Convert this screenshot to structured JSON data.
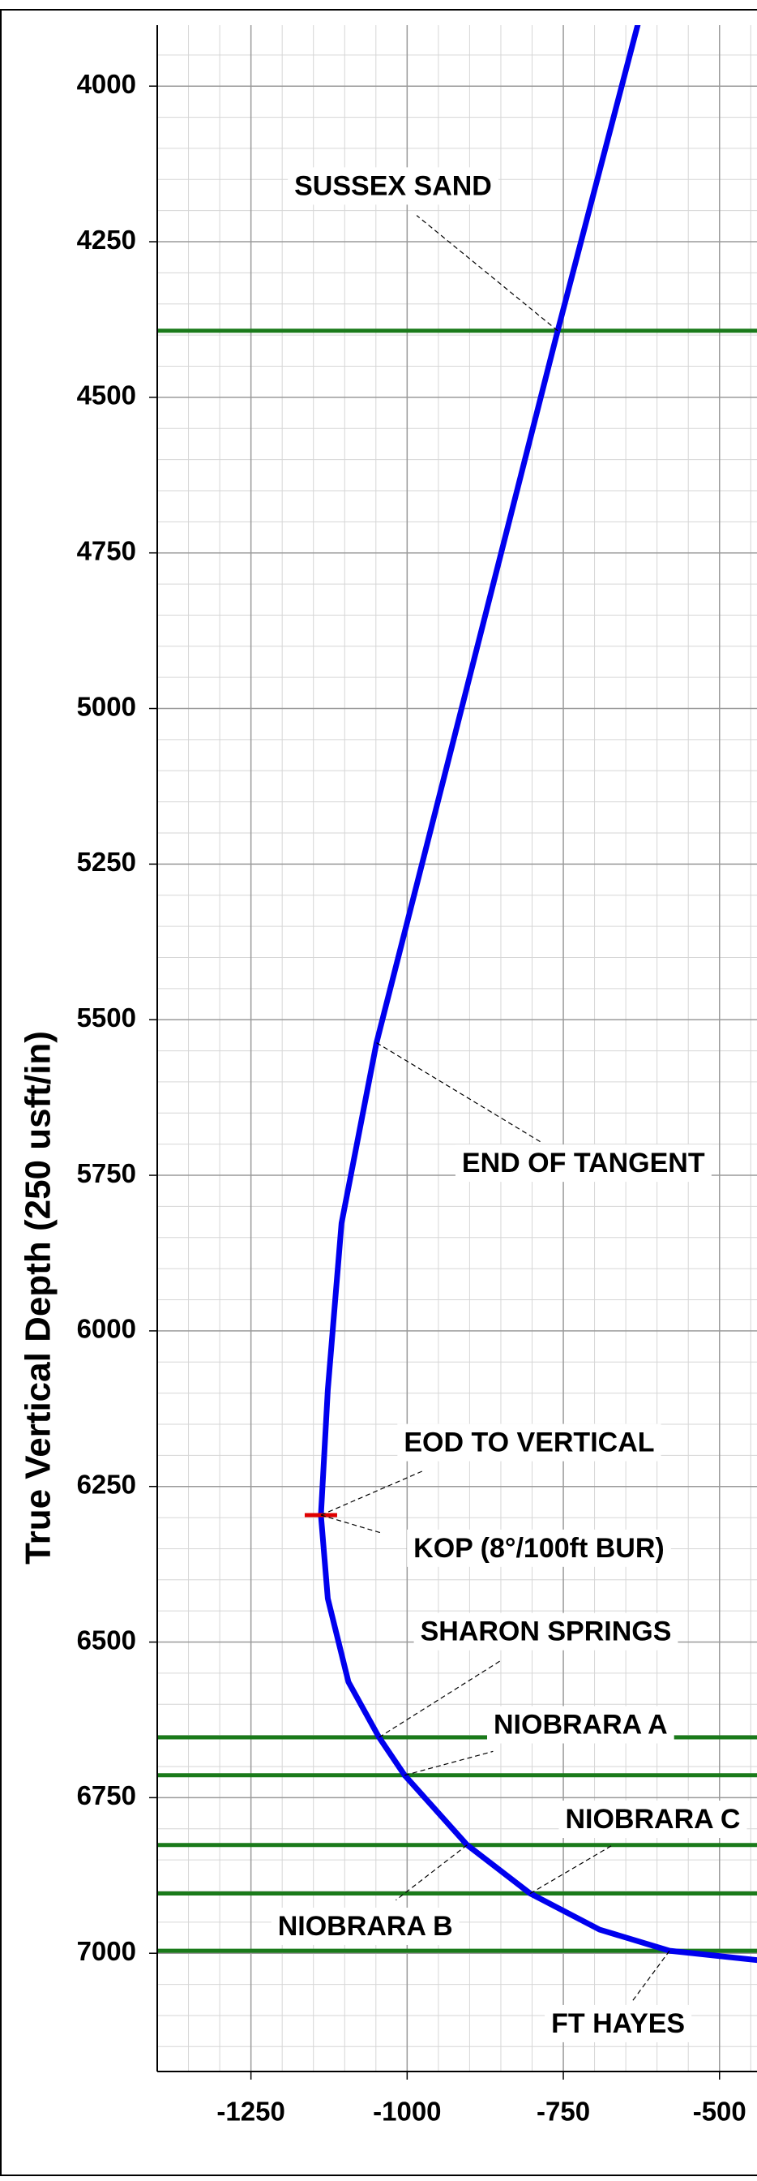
{
  "chart_data": {
    "type": "line",
    "y_label": "True Vertical Depth (250 usft/in)",
    "x": [
      -631,
      -759,
      -1049,
      -1105,
      -1127,
      -1138,
      -1127,
      -1094,
      -1045,
      -1004,
      -904,
      -803,
      -692,
      -580,
      -440
    ],
    "values": [
      3902,
      4393,
      5537,
      5827,
      6095,
      6296,
      6430,
      6564,
      6653,
      6714,
      6826,
      6904,
      6962,
      6996,
      7011
    ],
    "color": "#0000ee",
    "xlim": [
      -1400,
      -440
    ],
    "ylim": [
      3902,
      7190
    ],
    "y_inverted": true,
    "xticks": [
      -1250,
      -1000,
      -750,
      -500
    ],
    "yticks": [
      4000,
      4250,
      4500,
      4750,
      5000,
      5250,
      5500,
      5750,
      6000,
      6250,
      6500,
      6750,
      7000
    ],
    "grid": true,
    "minor_grid": 50,
    "formation_color": "#1a7a1a",
    "formations": [
      {
        "name": "SUSSEX SAND",
        "value": 4393
      },
      {
        "name": "SHARON SPRINGS",
        "value": 6653
      },
      {
        "name": "NIOBRARA A",
        "value": 6714
      },
      {
        "name": "NIOBRARA B",
        "value": 6826
      },
      {
        "name": "NIOBRARA C",
        "value": 6904
      },
      {
        "name": "FT HAYES",
        "value": 6996
      }
    ],
    "points": [
      {
        "label": "END OF TANGENT",
        "x": -1049,
        "value": 5537
      },
      {
        "label": "EOD TO VERTICAL",
        "x": -1138,
        "value": 6296
      },
      {
        "label": "KOP (8°/100ft BUR)",
        "x": -1138,
        "value": 6296,
        "color": "#e00000"
      }
    ]
  }
}
